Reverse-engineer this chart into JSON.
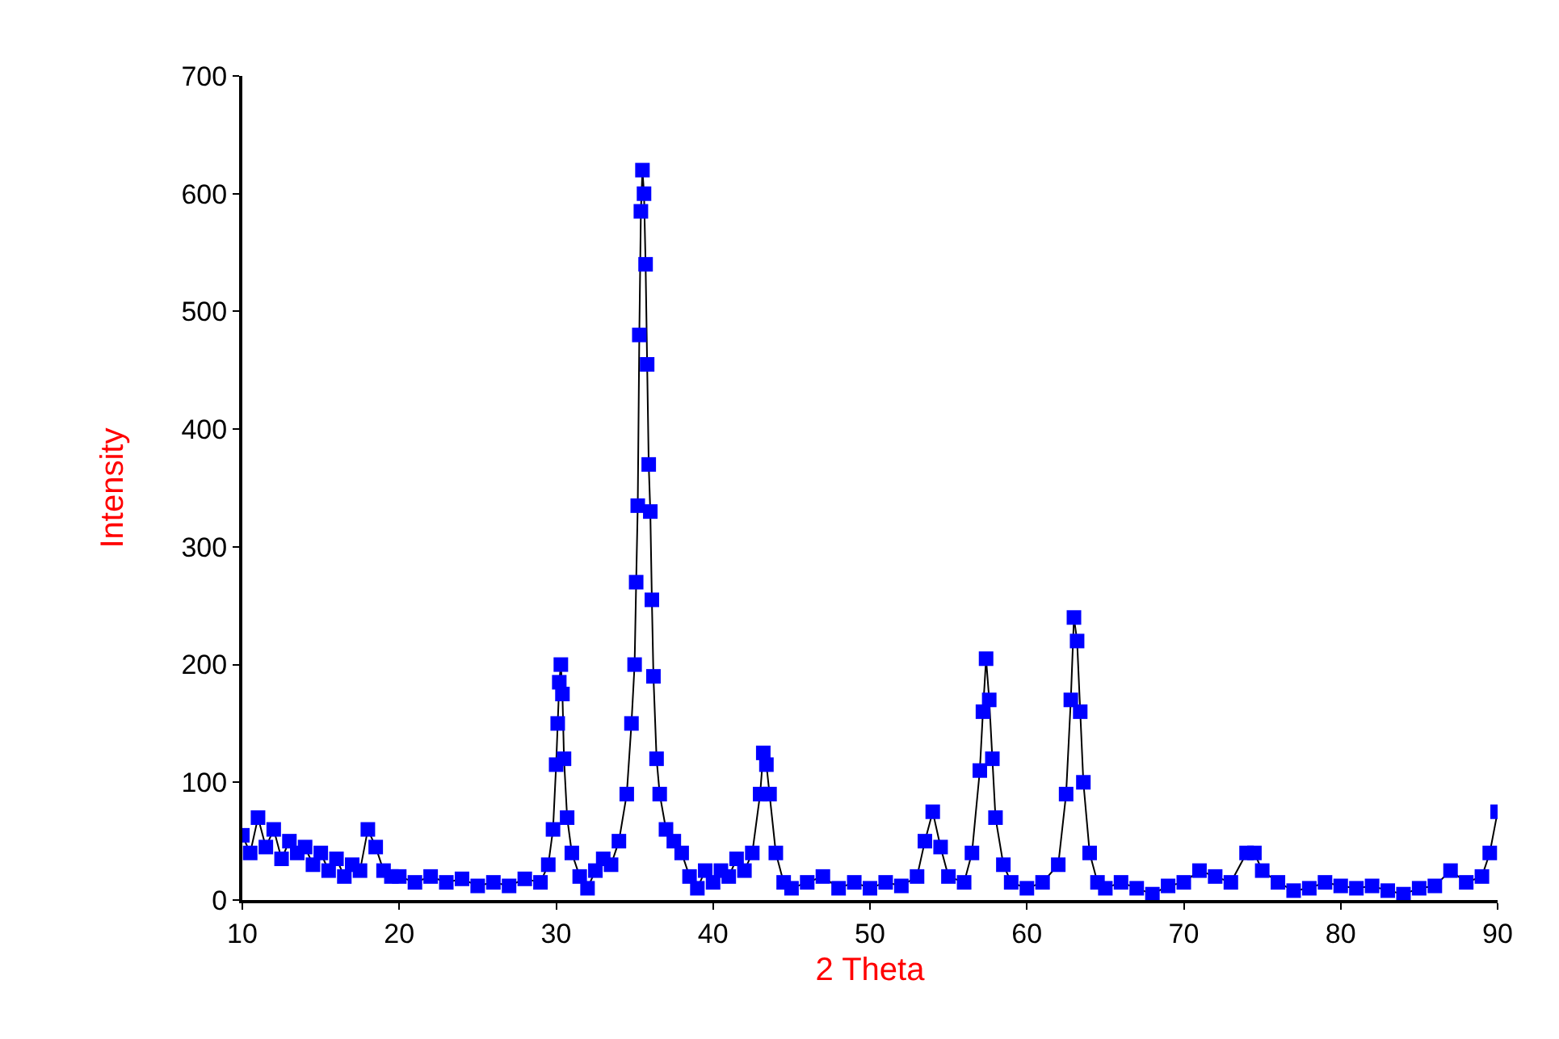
{
  "chart_data": {
    "type": "line",
    "xlabel": "2 Theta",
    "ylabel": "Intensity",
    "xlim": [
      10,
      90
    ],
    "xticks": [
      10,
      20,
      30,
      40,
      50,
      60,
      70,
      80,
      90
    ],
    "ylim": [
      0,
      700
    ],
    "yticks": [
      0,
      100,
      200,
      300,
      400,
      500,
      600,
      700
    ],
    "marker": "square",
    "line_style": "solid",
    "series": [
      {
        "color": "#0000ff",
        "x": [
          10,
          10.5,
          11,
          11.5,
          12,
          12.5,
          13,
          13.5,
          14,
          14.5,
          15,
          15.5,
          16,
          16.5,
          17,
          17.5,
          18,
          18.5,
          19,
          19.5,
          20,
          21,
          22,
          23,
          24,
          25,
          26,
          27,
          28,
          29,
          29.5,
          29.8,
          30,
          30.1,
          30.2,
          30.3,
          30.4,
          30.5,
          30.7,
          31,
          31.5,
          32,
          32.5,
          33,
          33.5,
          34,
          34.5,
          34.8,
          35,
          35.1,
          35.2,
          35.3,
          35.4,
          35.5,
          35.6,
          35.7,
          35.8,
          35.9,
          36,
          36.1,
          36.2,
          36.4,
          36.6,
          37,
          37.5,
          38,
          38.5,
          39,
          39.5,
          40,
          40.5,
          41,
          41.5,
          42,
          42.5,
          43,
          43.2,
          43.4,
          43.6,
          44,
          44.5,
          45,
          46,
          47,
          48,
          49,
          50,
          51,
          52,
          53,
          53.5,
          54,
          54.5,
          55,
          56,
          56.5,
          57,
          57.2,
          57.4,
          57.6,
          57.8,
          58,
          58.5,
          59,
          60,
          61,
          62,
          62.5,
          62.8,
          63,
          63.2,
          63.4,
          63.6,
          64,
          64.5,
          65,
          66,
          67,
          68,
          69,
          70,
          71,
          72,
          73,
          74,
          74.5,
          75,
          76,
          77,
          78,
          79,
          80,
          81,
          82,
          83,
          84,
          85,
          86,
          87,
          88,
          89,
          89.5,
          90
        ],
        "values": [
          55,
          40,
          70,
          45,
          60,
          35,
          50,
          40,
          45,
          30,
          40,
          25,
          35,
          20,
          30,
          25,
          60,
          45,
          25,
          20,
          20,
          15,
          20,
          15,
          18,
          12,
          15,
          12,
          18,
          15,
          30,
          60,
          115,
          150,
          185,
          200,
          175,
          120,
          70,
          40,
          20,
          10,
          25,
          35,
          30,
          50,
          90,
          150,
          200,
          270,
          335,
          480,
          585,
          620,
          600,
          540,
          455,
          370,
          330,
          255,
          190,
          120,
          90,
          60,
          50,
          40,
          20,
          10,
          25,
          15,
          25,
          20,
          35,
          25,
          40,
          90,
          125,
          115,
          90,
          40,
          15,
          10,
          15,
          20,
          10,
          15,
          10,
          15,
          12,
          20,
          50,
          75,
          45,
          20,
          15,
          40,
          110,
          160,
          205,
          170,
          120,
          70,
          30,
          15,
          10,
          15,
          30,
          90,
          170,
          240,
          220,
          160,
          100,
          40,
          15,
          10,
          15,
          10,
          5,
          12,
          15,
          25,
          20,
          15,
          40,
          40,
          25,
          15,
          8,
          10,
          15,
          12,
          10,
          12,
          8,
          5,
          10,
          12,
          25,
          15,
          20,
          40,
          75
        ]
      }
    ]
  }
}
